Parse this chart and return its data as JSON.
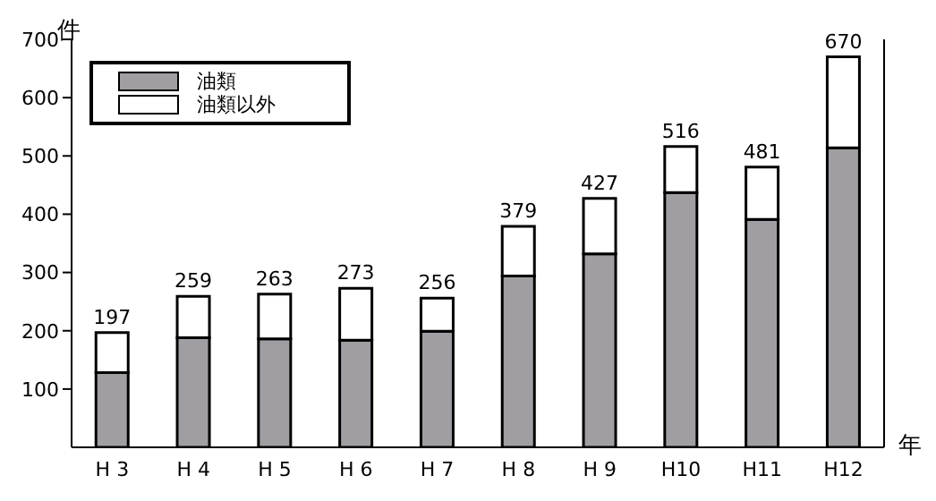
{
  "chart_data": {
    "type": "bar",
    "stacked": true,
    "ylabel": "件",
    "xlabel": "年",
    "categories": [
      "H 3",
      "H 4",
      "H 5",
      "H 6",
      "H 7",
      "H 8",
      "H 9",
      "H10",
      "H11",
      "H12"
    ],
    "series": [
      {
        "name": "油類",
        "color": "#a09ea2",
        "values": [
          128,
          188,
          186,
          184,
          199,
          294,
          332,
          437,
          391,
          514
        ]
      },
      {
        "name": "油類以外",
        "color": "#ffffff",
        "values": [
          69,
          71,
          77,
          89,
          57,
          85,
          95,
          79,
          90,
          156
        ]
      }
    ],
    "totals": [
      "197",
      "259",
      "263",
      "273",
      "256",
      "379",
      "427",
      "516",
      "481",
      "670"
    ],
    "ylim": [
      0,
      700
    ],
    "yticks": [
      100,
      200,
      300,
      400,
      500,
      600,
      700
    ],
    "grid": false,
    "legend": "top left"
  }
}
